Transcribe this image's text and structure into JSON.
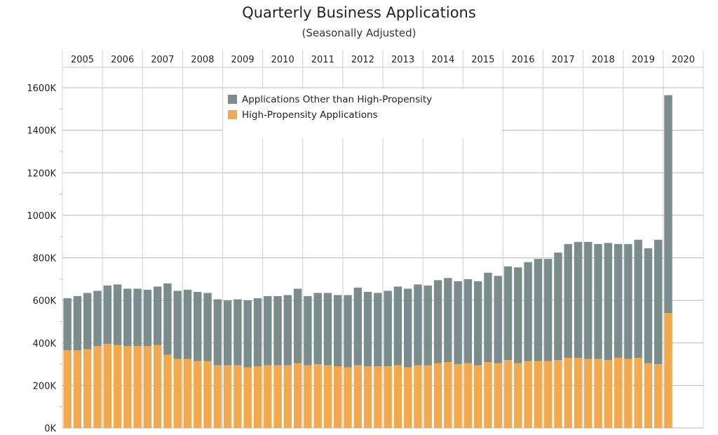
{
  "chart_data": {
    "type": "bar",
    "stacked": true,
    "title": "Quarterly Business Applications",
    "subtitle": "(Seasonally Adjusted)",
    "xlabel": "",
    "ylabel": "",
    "years": [
      "2005",
      "2006",
      "2007",
      "2008",
      "2009",
      "2010",
      "2011",
      "2012",
      "2013",
      "2014",
      "2015",
      "2016",
      "2017",
      "2018",
      "2019",
      "2020"
    ],
    "quarters_per_year": 4,
    "ylim": [
      0,
      1700000
    ],
    "yticks": [
      0,
      200000,
      400000,
      600000,
      800000,
      1000000,
      1200000,
      1400000,
      1600000
    ],
    "ytick_labels": [
      "0K",
      "200K",
      "400K",
      "600K",
      "800K",
      "1000K",
      "1200K",
      "1400K",
      "1600K"
    ],
    "grid": true,
    "legend_position": "top-center",
    "series": [
      {
        "name": "High-Propensity Applications",
        "color": "#F2A94E",
        "values": [
          365000,
          365000,
          370000,
          385000,
          395000,
          390000,
          385000,
          385000,
          385000,
          390000,
          345000,
          325000,
          325000,
          315000,
          315000,
          295000,
          295000,
          295000,
          285000,
          290000,
          295000,
          295000,
          295000,
          305000,
          295000,
          300000,
          295000,
          290000,
          285000,
          295000,
          290000,
          290000,
          290000,
          295000,
          285000,
          295000,
          295000,
          305000,
          310000,
          300000,
          305000,
          295000,
          310000,
          305000,
          320000,
          305000,
          315000,
          315000,
          315000,
          320000,
          330000,
          330000,
          325000,
          325000,
          320000,
          330000,
          325000,
          330000,
          305000,
          300000,
          540000
        ]
      },
      {
        "name": "Applications Other than High-Propensity",
        "color": "#7A8C8C",
        "values": [
          245000,
          255000,
          265000,
          260000,
          275000,
          285000,
          270000,
          270000,
          265000,
          275000,
          335000,
          320000,
          325000,
          325000,
          320000,
          310000,
          305000,
          310000,
          315000,
          320000,
          325000,
          325000,
          330000,
          350000,
          325000,
          335000,
          340000,
          335000,
          340000,
          365000,
          350000,
          345000,
          355000,
          370000,
          370000,
          380000,
          375000,
          390000,
          395000,
          390000,
          395000,
          395000,
          420000,
          410000,
          440000,
          450000,
          465000,
          480000,
          480000,
          505000,
          535000,
          545000,
          550000,
          540000,
          550000,
          535000,
          540000,
          555000,
          540000,
          585000,
          1025000
        ]
      }
    ]
  }
}
